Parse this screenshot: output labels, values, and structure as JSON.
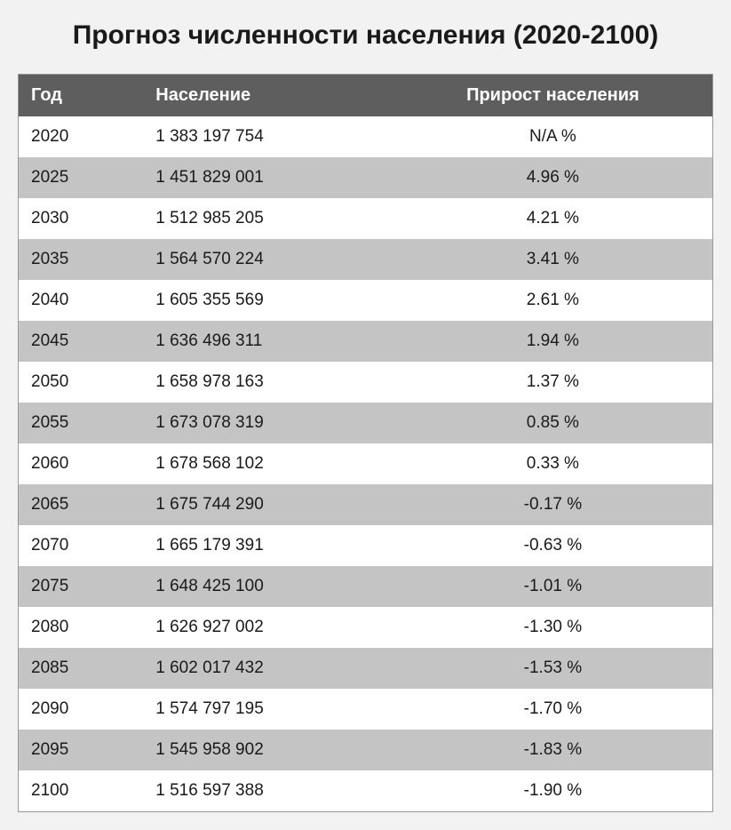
{
  "title": "Прогноз численности населения (2020-2100)",
  "table": {
    "type": "table",
    "header_bg": "#5e5e5e",
    "header_color": "#ffffff",
    "row_even_bg": "#ffffff",
    "row_odd_bg": "#c4c4c4",
    "border_color": "#999999",
    "font_family": "Arial",
    "title_fontsize": 30,
    "header_fontsize": 20,
    "cell_fontsize": 19,
    "columns": [
      {
        "key": "year",
        "label": "Год",
        "align": "left"
      },
      {
        "key": "population",
        "label": "Население",
        "align": "left"
      },
      {
        "key": "growth",
        "label": "Прирост населения",
        "align": "center"
      }
    ],
    "rows": [
      {
        "year": "2020",
        "population": "1 383 197 754",
        "growth": "N/A %"
      },
      {
        "year": "2025",
        "population": "1 451 829 001",
        "growth": "4.96 %"
      },
      {
        "year": "2030",
        "population": "1 512 985 205",
        "growth": "4.21 %"
      },
      {
        "year": "2035",
        "population": "1 564 570 224",
        "growth": "3.41 %"
      },
      {
        "year": "2040",
        "population": "1 605 355 569",
        "growth": "2.61 %"
      },
      {
        "year": "2045",
        "population": "1 636 496 311",
        "growth": "1.94 %"
      },
      {
        "year": "2050",
        "population": "1 658 978 163",
        "growth": "1.37 %"
      },
      {
        "year": "2055",
        "population": "1 673 078 319",
        "growth": "0.85 %"
      },
      {
        "year": "2060",
        "population": "1 678 568 102",
        "growth": "0.33 %"
      },
      {
        "year": "2065",
        "population": "1 675 744 290",
        "growth": "-0.17 %"
      },
      {
        "year": "2070",
        "population": "1 665 179 391",
        "growth": "-0.63 %"
      },
      {
        "year": "2075",
        "population": "1 648 425 100",
        "growth": "-1.01 %"
      },
      {
        "year": "2080",
        "population": "1 626 927 002",
        "growth": "-1.30 %"
      },
      {
        "year": "2085",
        "population": "1 602 017 432",
        "growth": "-1.53 %"
      },
      {
        "year": "2090",
        "population": "1 574 797 195",
        "growth": "-1.70 %"
      },
      {
        "year": "2095",
        "population": "1 545 958 902",
        "growth": "-1.83 %"
      },
      {
        "year": "2100",
        "population": "1 516 597 388",
        "growth": "-1.90 %"
      }
    ]
  }
}
